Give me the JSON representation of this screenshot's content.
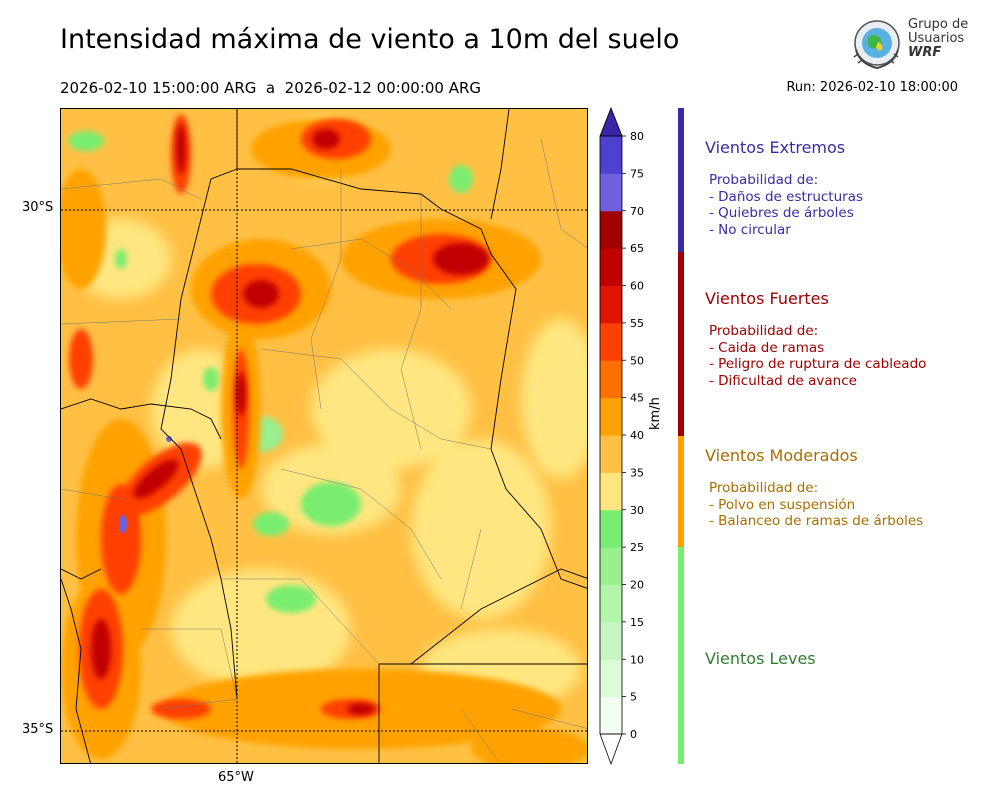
{
  "header": {
    "title": "Intensidad máxima de viento a 10m del suelo",
    "period": "2026-02-10 15:00:00 ARG  a  2026-02-12 00:00:00 ARG",
    "run": "Run: 2026-02-10 18:00:00"
  },
  "logo": {
    "line1": "Grupo de",
    "line2": "Usuarios",
    "line3": "WRF"
  },
  "map": {
    "lat_labels": [
      "30°S",
      "35°S"
    ],
    "lon_labels": [
      "65°W"
    ]
  },
  "colorbar": {
    "unit": "km/h",
    "ticks": [
      "0",
      "5",
      "10",
      "15",
      "20",
      "25",
      "30",
      "35",
      "40",
      "45",
      "50",
      "55",
      "60",
      "65",
      "70",
      "75",
      "80"
    ],
    "colors": [
      "#f0fff0",
      "#dbfbd9",
      "#c6f7c2",
      "#b2f5ab",
      "#98f08f",
      "#79ed6f",
      "#ffe680",
      "#ffc044",
      "#ffa200",
      "#ff7000",
      "#ff4000",
      "#e01500",
      "#c00000",
      "#a00000",
      "#7060e0",
      "#5040d0",
      "#4030b8"
    ],
    "extend_low": "#ffffff",
    "extend_high": "#3a25a8"
  },
  "categories": [
    {
      "title": "Vientos Extremos",
      "color": "#3b2aa8",
      "lines": [
        "Probabilidad de:",
        "- Daños de estructuras",
        "- Quiebres de árboles",
        "- No circular"
      ]
    },
    {
      "title": "Vientos Fuertes",
      "color": "#a00000",
      "lines": [
        "Probabilidad de:",
        "- Caida de ramas",
        "- Peligro de ruptura de cableado",
        "- Dificultad de avance"
      ]
    },
    {
      "title": "Vientos Moderados",
      "color": "#a86e00",
      "bar_color": "#ffa200",
      "lines": [
        "Probabilidad de:",
        "- Polvo en suspensión",
        "- Balanceo de ramas de árboles"
      ]
    },
    {
      "title": "Vientos Leves",
      "color": "#2f7d2f",
      "bar_color": "#79ed6f",
      "lines": []
    }
  ]
}
